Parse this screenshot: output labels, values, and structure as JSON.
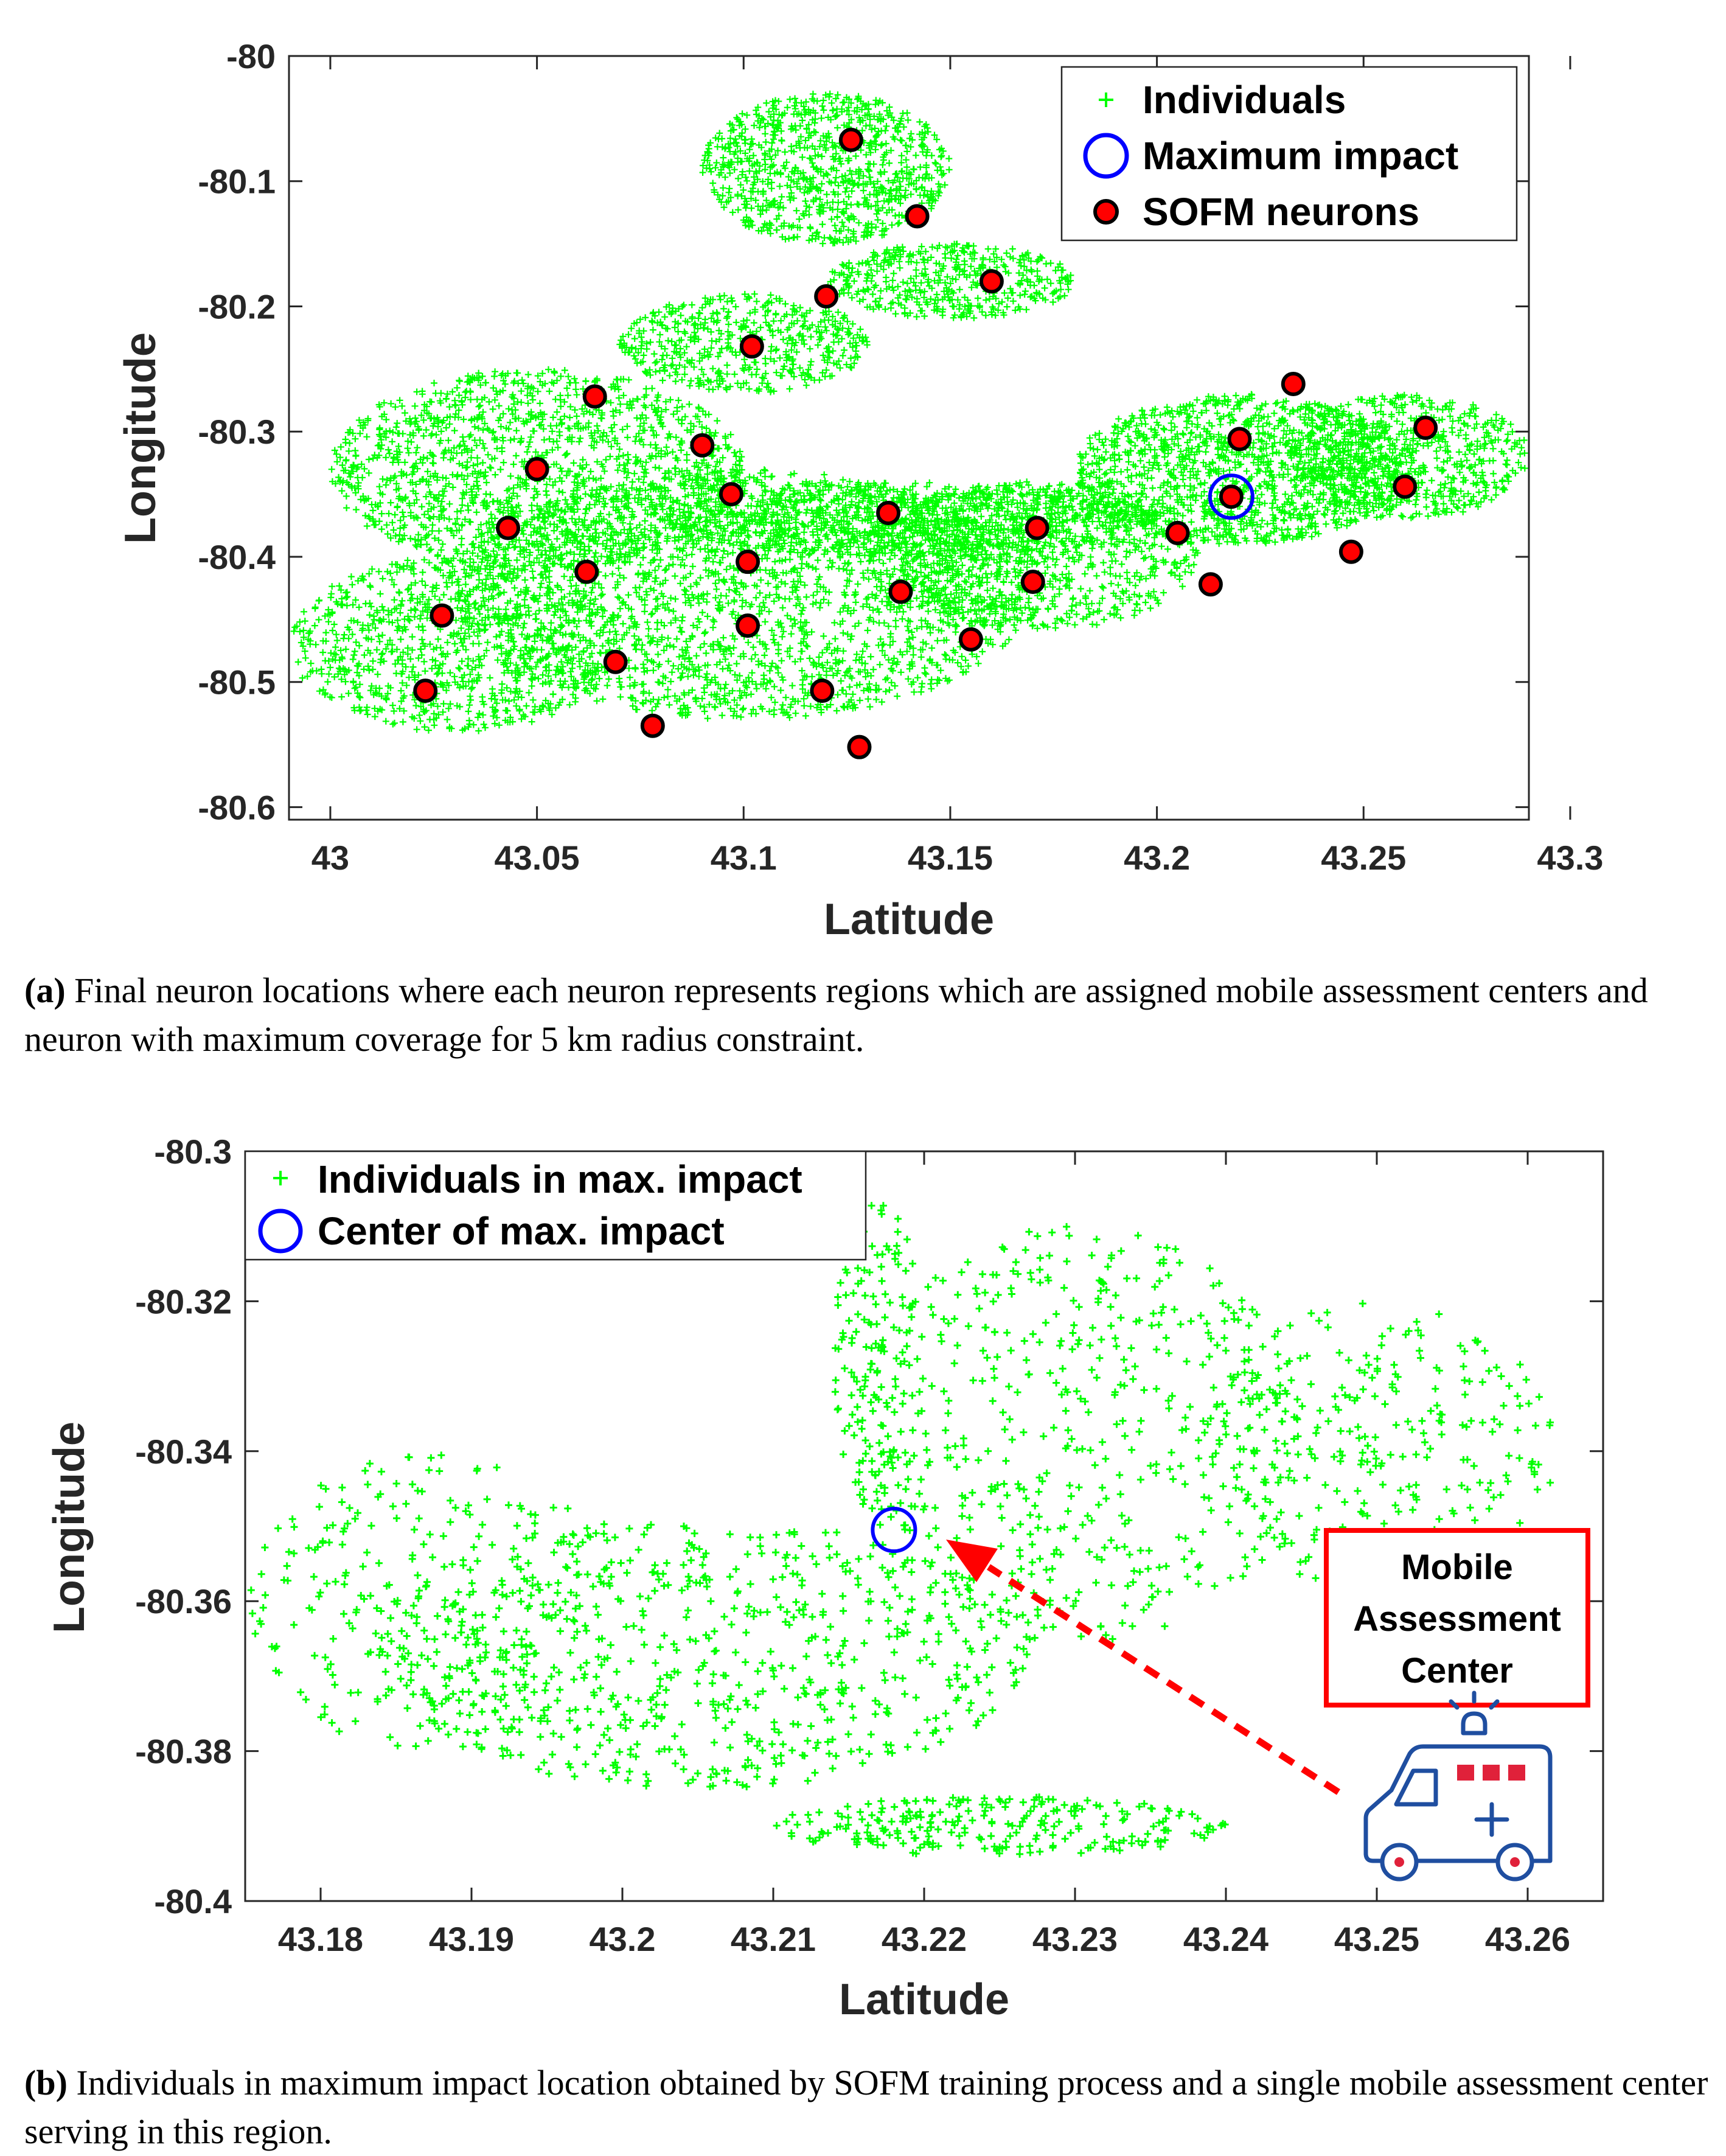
{
  "chart_data": [
    {
      "id": "panel-a",
      "type": "scatter",
      "xlabel": "Latitude",
      "ylabel": "Longitude",
      "xlim": [
        42.99,
        43.29
      ],
      "ylim": [
        -80.61,
        -80.0
      ],
      "x_ticks": [
        "43",
        "43.05",
        "43.1",
        "43.15",
        "43.2",
        "43.25",
        "43.3"
      ],
      "y_ticks": [
        "-80",
        "-80.1",
        "-80.2",
        "-80.3",
        "-80.4",
        "-80.5",
        "-80.6"
      ],
      "y_reversed": true,
      "grid": false,
      "legend_position": "top-right",
      "legend": [
        "Individuals",
        "Maximum impact",
        "SOFM neurons"
      ],
      "series": [
        {
          "name": "Individuals",
          "marker": "+",
          "color": "#00ff00",
          "regions": [
            {
              "xc": 43.12,
              "yc": -80.09,
              "rx": 0.03,
              "ry": 0.06,
              "count": 900
            },
            {
              "xc": 43.15,
              "yc": -80.18,
              "rx": 0.03,
              "ry": 0.03,
              "count": 450
            },
            {
              "xc": 43.1,
              "yc": -80.23,
              "rx": 0.03,
              "ry": 0.04,
              "count": 500
            },
            {
              "xc": 43.05,
              "yc": -80.33,
              "rx": 0.05,
              "ry": 0.08,
              "count": 1500
            },
            {
              "xc": 43.1,
              "yc": -80.43,
              "rx": 0.07,
              "ry": 0.1,
              "count": 2300
            },
            {
              "xc": 43.03,
              "yc": -80.47,
              "rx": 0.04,
              "ry": 0.07,
              "count": 900
            },
            {
              "xc": 43.14,
              "yc": -80.37,
              "rx": 0.06,
              "ry": 0.03,
              "count": 900
            },
            {
              "xc": 43.17,
              "yc": -80.4,
              "rx": 0.04,
              "ry": 0.06,
              "count": 900
            },
            {
              "xc": 43.22,
              "yc": -80.33,
              "rx": 0.04,
              "ry": 0.06,
              "count": 1300
            },
            {
              "xc": 43.26,
              "yc": -80.32,
              "rx": 0.03,
              "ry": 0.05,
              "count": 700
            }
          ]
        },
        {
          "name": "SOFM neurons",
          "marker": "filled-circle",
          "color": "#ff0000",
          "x": [
            43.126,
            43.142,
            43.16,
            43.12,
            43.102,
            43.064,
            43.09,
            43.05,
            43.097,
            43.043,
            43.062,
            43.027,
            43.023,
            43.069,
            43.078,
            43.101,
            43.101,
            43.119,
            43.128,
            43.135,
            43.138,
            43.155,
            43.17,
            43.171,
            43.205,
            43.213,
            43.218,
            43.22,
            43.233,
            43.247,
            43.26,
            43.265
          ],
          "y": [
            -80.067,
            -80.128,
            -80.18,
            -80.192,
            -80.232,
            -80.272,
            -80.311,
            -80.33,
            -80.35,
            -80.377,
            -80.412,
            -80.447,
            -80.507,
            -80.484,
            -80.535,
            -80.404,
            -80.455,
            -80.507,
            -80.552,
            -80.365,
            -80.428,
            -80.466,
            -80.42,
            -80.377,
            -80.381,
            -80.422,
            -80.352,
            -80.306,
            -80.262,
            -80.396,
            -80.344,
            -80.297
          ]
        },
        {
          "name": "Maximum impact",
          "marker": "circle",
          "color": "#0000ff",
          "x": [
            43.218
          ],
          "y": [
            -80.352
          ]
        }
      ]
    },
    {
      "id": "panel-b",
      "type": "scatter",
      "xlabel": "Latitude",
      "ylabel": "Longitude",
      "xlim": [
        43.175,
        43.265
      ],
      "ylim": [
        -80.4,
        -80.3
      ],
      "x_ticks": [
        "43.18",
        "43.19",
        "43.2",
        "43.21",
        "43.22",
        "43.23",
        "43.24",
        "43.25",
        "43.26"
      ],
      "y_ticks": [
        "-80.3",
        "-80.32",
        "-80.34",
        "-80.36",
        "-80.38",
        "-80.4"
      ],
      "y_reversed": true,
      "grid": false,
      "legend_position": "top-left",
      "legend": [
        "Individuals in max. impact",
        "Center of max. impact"
      ],
      "series": [
        {
          "name": "Individuals in max. impact",
          "marker": "+",
          "color": "#00ff00",
          "regions": [
            {
              "xc": 43.205,
              "yc": -80.367,
              "rx": 0.022,
              "ry": 0.018,
              "count": 700
            },
            {
              "xc": 43.187,
              "yc": -80.36,
              "rx": 0.012,
              "ry": 0.02,
              "count": 250
            },
            {
              "xc": 43.23,
              "yc": -80.338,
              "rx": 0.015,
              "ry": 0.028,
              "count": 500
            },
            {
              "xc": 43.25,
              "yc": -80.34,
              "rx": 0.012,
              "ry": 0.02,
              "count": 300
            },
            {
              "xc": 43.225,
              "yc": -80.39,
              "rx": 0.015,
              "ry": 0.004,
              "count": 250
            },
            {
              "xc": 43.217,
              "yc": -80.328,
              "rx": 0.003,
              "ry": 0.022,
              "count": 150
            }
          ]
        },
        {
          "name": "Center of max. impact",
          "marker": "circle",
          "color": "#0000ff",
          "x": [
            43.218
          ],
          "y": [
            -80.3505
          ]
        }
      ],
      "annotation": {
        "text_lines": [
          "Mobile",
          "Assessment",
          "Center"
        ],
        "border_color": "#ff0000",
        "arrow_color": "#ff0000",
        "icon": "ambulance-icon"
      }
    }
  ],
  "captions": {
    "a_label": "(a)",
    "a_text": " Final neuron locations where each neuron represents regions which are assigned mobile assessment centers and neuron with maximum coverage for 5 km radius constraint.",
    "b_label": "(b)",
    "b_text": " Individuals in maximum impact location obtained by SOFM training process and a single mobile assessment center serving in this region."
  }
}
